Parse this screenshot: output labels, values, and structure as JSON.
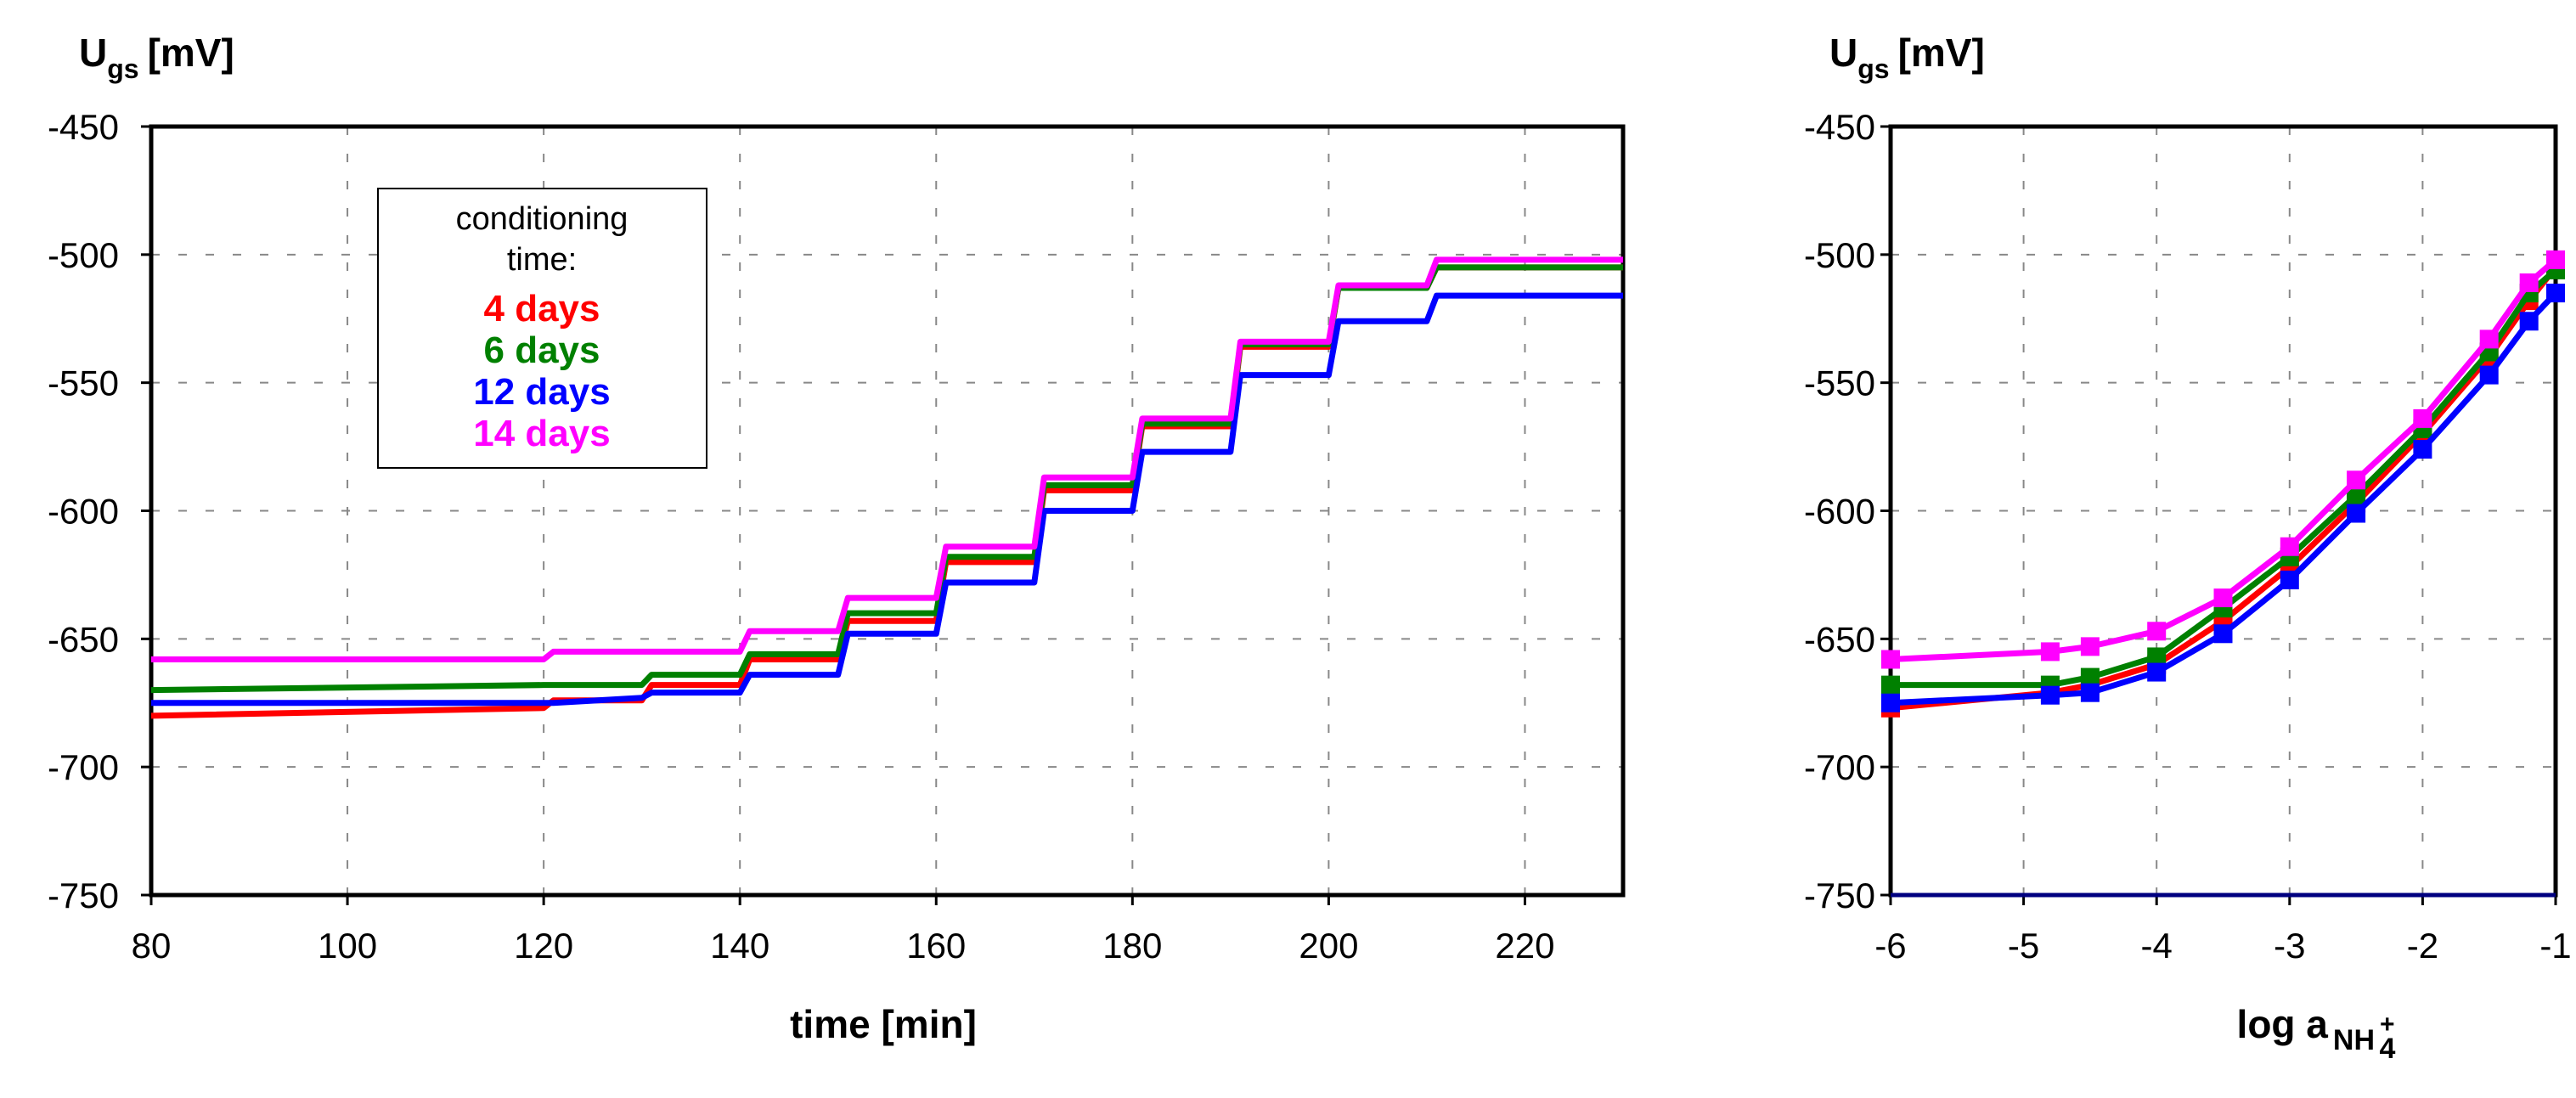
{
  "chart_data": [
    {
      "type": "line",
      "ylabel": "U",
      "ylabel_sub": "gs",
      "ylabel_unit": "[mV]",
      "xlabel": "time [min]",
      "legend_title": [
        "conditioning",
        "time:"
      ],
      "x": [
        80,
        120,
        121,
        130,
        131,
        140,
        141,
        150,
        151,
        160,
        161,
        170,
        171,
        180,
        181,
        190,
        191,
        200,
        201,
        210,
        211,
        230
      ],
      "series": [
        {
          "name": "4 days",
          "color": "#ff0000",
          "values": [
            -680,
            -677,
            -674,
            -674,
            -668,
            -668,
            -658,
            -658,
            -643,
            -643,
            -620,
            -620,
            -592,
            -592,
            -567,
            -567,
            -536,
            -536,
            -513,
            -513,
            -505,
            -505
          ]
        },
        {
          "name": "6 days",
          "color": "#008000",
          "values": [
            -670,
            -668,
            -668,
            -668,
            -664,
            -664,
            -656,
            -656,
            -640,
            -640,
            -618,
            -618,
            -590,
            -590,
            -566,
            -566,
            -535,
            -535,
            -513,
            -513,
            -505,
            -505
          ]
        },
        {
          "name": "12 days",
          "color": "#0000ff",
          "values": [
            -675,
            -675,
            -675,
            -673,
            -671,
            -671,
            -664,
            -664,
            -648,
            -648,
            -628,
            -628,
            -600,
            -600,
            -577,
            -577,
            -547,
            -547,
            -526,
            -526,
            -516,
            -516
          ]
        },
        {
          "name": "14 days",
          "color": "#ff00ff",
          "values": [
            -658,
            -658,
            -655,
            -655,
            -655,
            -655,
            -647,
            -647,
            -634,
            -634,
            -614,
            -614,
            -587,
            -587,
            -564,
            -564,
            -534,
            -534,
            -512,
            -512,
            -502,
            -502
          ]
        }
      ],
      "xlim": [
        80,
        230
      ],
      "xticks": [
        80,
        100,
        120,
        140,
        160,
        180,
        200,
        220
      ],
      "ylim": [
        -750,
        -450
      ],
      "yticks": [
        -750,
        -700,
        -650,
        -600,
        -550,
        -500,
        -450
      ],
      "grid": true
    },
    {
      "type": "line-markers",
      "ylabel": "U",
      "ylabel_sub": "gs",
      "ylabel_unit": "[mV]",
      "xlabel": "log  a",
      "xlabel_sub": "NH",
      "xlabel_sub2": "4",
      "xlabel_sup": "+",
      "x": [
        -6,
        -4.8,
        -4.5,
        -4,
        -3.5,
        -3,
        -2.5,
        -2,
        -1.5,
        -1.2,
        -1
      ],
      "series": [
        {
          "color": "#ff0000",
          "values": [
            -677,
            -671,
            -668,
            -660,
            -643,
            -622,
            -597,
            -570,
            -540,
            -518,
            -505
          ]
        },
        {
          "color": "#008000",
          "values": [
            -668,
            -668,
            -665,
            -657,
            -638,
            -618,
            -594,
            -568,
            -538,
            -515,
            -506
          ]
        },
        {
          "color": "#0000ff",
          "values": [
            -675,
            -672,
            -671,
            -663,
            -648,
            -627,
            -601,
            -576,
            -547,
            -526,
            -515
          ]
        },
        {
          "color": "#ff00ff",
          "values": [
            -658,
            -655,
            -653,
            -647,
            -634,
            -614,
            -588,
            -564,
            -533,
            -511,
            -502
          ]
        }
      ],
      "xlim": [
        -6,
        -1
      ],
      "xticks": [
        -6,
        -5,
        -4,
        -3,
        -2,
        -1
      ],
      "ylim": [
        -750,
        -450
      ],
      "yticks": [
        -750,
        -700,
        -650,
        -600,
        -550,
        -500,
        -450
      ],
      "grid": true
    }
  ]
}
